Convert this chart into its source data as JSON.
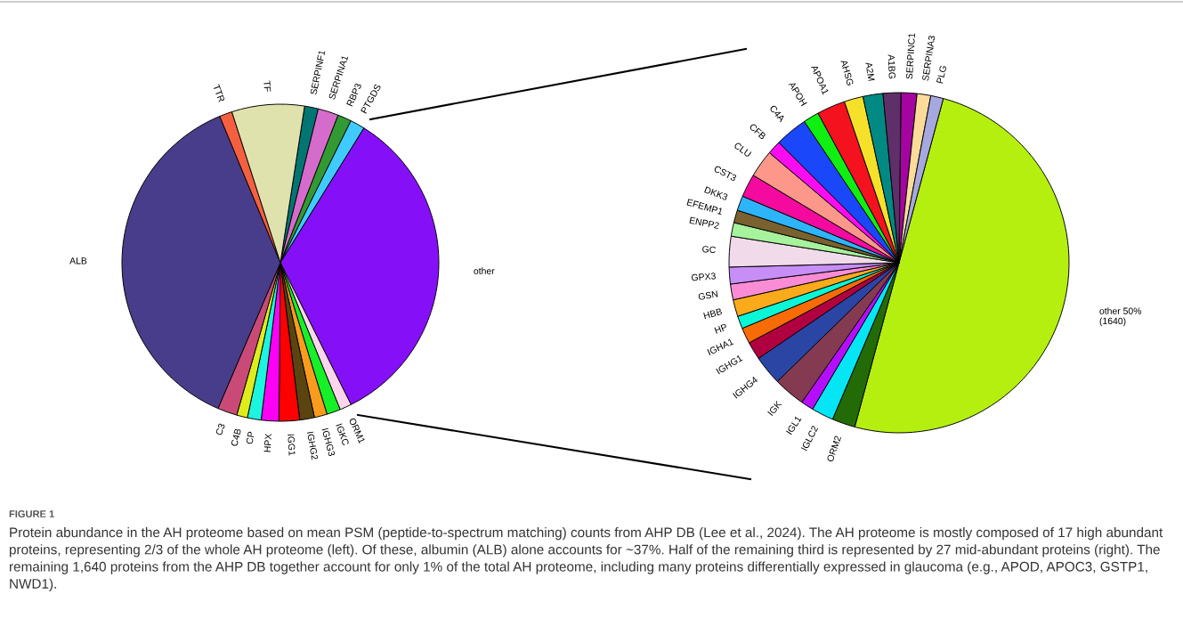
{
  "chart_data": [
    {
      "type": "pie",
      "categories": [
        "SERPINF1",
        "SERPINA1",
        "RBP3",
        "PTGDS",
        "other",
        "ORM1",
        "IGKC",
        "IGHG3",
        "IGHG2",
        "IGG1",
        "HPX",
        "CP",
        "C4B",
        "C3",
        "ALB",
        "TTR",
        "TF"
      ],
      "values": [
        1.4,
        2.1,
        1.4,
        1.5,
        33.8,
        1.2,
        1.4,
        1.3,
        1.5,
        2.1,
        1.8,
        1.4,
        1.1,
        2.0,
        37.3,
        1.3,
        7.4
      ],
      "colors": [
        "#007572",
        "#d56ccb",
        "#339933",
        "#3fcbff",
        "#8510f8",
        "#fcd5ed",
        "#15f028",
        "#f99b1c",
        "#5a4510",
        "#fd0000",
        "#fc00f5",
        "#1cf4e0",
        "#dfec1c",
        "#c94a76",
        "#483d8b",
        "#f4603f",
        "#e0e2ad"
      ],
      "annotations": [
        "FIGURE 1",
        "Protein abundance in the AH proteome based on mean PSM (peptide-to-spectrum matching) counts from AHP DB (Lee et al., 2024). The AH proteome is mostly composed of 17 high abundant proteins, representing 2/3 of the whole AH proteome (left). Of these, albumin (ALB) alone accounts for ~37%. Half of the remaining third is represented by 27 mid-abundant proteins (right). The remaining 1,640 proteins from the AHP DB together account for only 1% of the total AH proteome, including many proteins differentially expressed in glaucoma (e.g., APOD, APOC3, GSTP1, NWD1)."
      ]
    },
    {
      "type": "pie",
      "categories": [
        "other 50%\n(1640)",
        "ORM2",
        "IGLC2",
        "IGL1",
        "IGK",
        "IGHG4",
        "IGHG1",
        "IGHA1",
        "HP",
        "HBB",
        "GSN",
        "GPX3",
        "GC",
        "ENPP2",
        "EFEMP1",
        "DKK3",
        "CST3",
        "CLU",
        "CFB",
        "C4A",
        "APOH",
        "APOA1",
        "AHSG",
        "A2M",
        "A1BG",
        "SERPINC1",
        "SERPINA3",
        "PLG"
      ],
      "values": [
        50,
        2.2,
        2.1,
        1.2,
        3.0,
        2.8,
        1.7,
        1.5,
        1.2,
        1.6,
        1.5,
        1.6,
        2.9,
        1.3,
        1.2,
        1.4,
        2.2,
        2.6,
        1.3,
        3.1,
        1.5,
        2.7,
        1.8,
        1.9,
        1.7,
        1.5,
        1.3,
        1.2
      ],
      "colors": [
        "#b5ef10",
        "#236b07",
        "#05e5f4",
        "#b50efd",
        "#843b52",
        "#2b45a5",
        "#b10040",
        "#f96b05",
        "#0af6d6",
        "#fbaa1c",
        "#fa8cd5",
        "#c78ef8",
        "#f1dbea",
        "#a7f29c",
        "#7a6230",
        "#2eb4fb",
        "#f40a9f",
        "#fc978a",
        "#fa0cf0",
        "#1b47fa",
        "#0ff012",
        "#f3121e",
        "#f5e12a",
        "#008a83",
        "#5f2f6a",
        "#a4049f",
        "#fcdb9a",
        "#a6a8e0"
      ]
    }
  ]
}
